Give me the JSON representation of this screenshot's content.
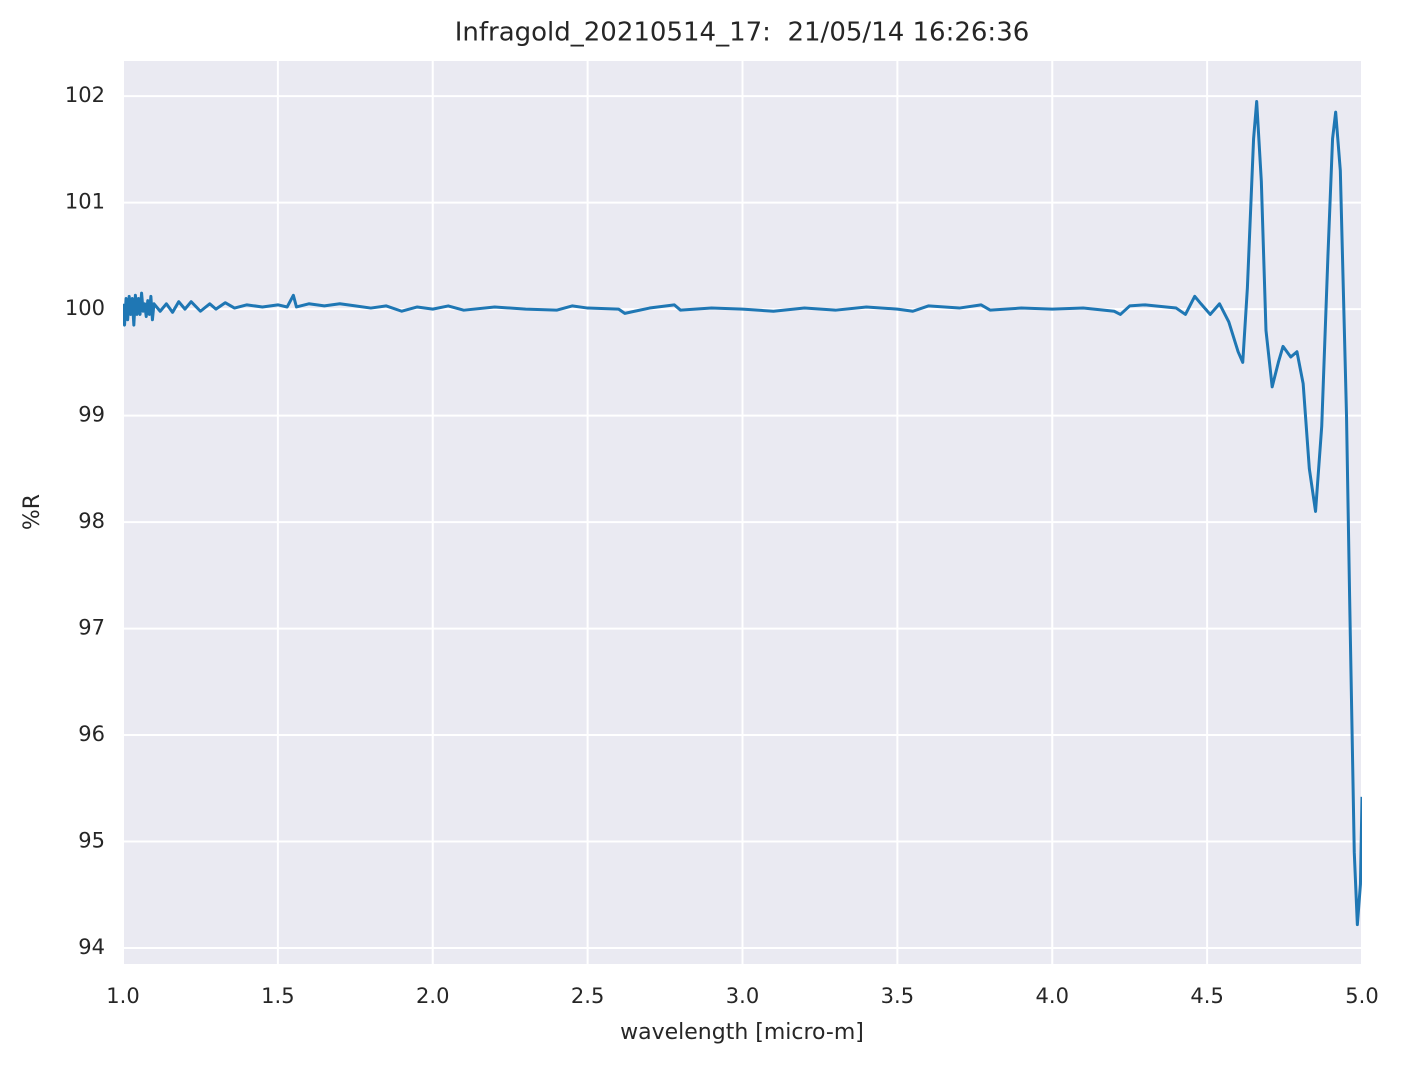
{
  "chart_data": {
    "type": "line",
    "title": "Infragold_20210514_17:  21/05/14 16:26:36",
    "x_label": "wavelength [micro-m]",
    "y_label": "%R",
    "color": "#1f77b4",
    "background": "#eaeaf2",
    "grid": true,
    "xlim": [
      1.0,
      5.0
    ],
    "ylim": [
      93.85,
      102.33
    ],
    "xticks": [
      {
        "value": 1,
        "label": "1.0"
      },
      {
        "value": 1.5,
        "label": "1.5"
      },
      {
        "value": 2,
        "label": "2.0"
      },
      {
        "value": 2.5,
        "label": "2.5"
      },
      {
        "value": 3,
        "label": "3.0"
      },
      {
        "value": 3.5,
        "label": "3.5"
      },
      {
        "value": 4,
        "label": "4.0"
      },
      {
        "value": 4.5,
        "label": "4.5"
      },
      {
        "value": 5,
        "label": "5.0"
      }
    ],
    "yticks": [
      94,
      95,
      96,
      97,
      98,
      99,
      100,
      101,
      102
    ],
    "x": [
      1.0,
      1.005,
      1.01,
      1.015,
      1.02,
      1.025,
      1.03,
      1.035,
      1.04,
      1.045,
      1.05,
      1.055,
      1.06,
      1.065,
      1.07,
      1.075,
      1.08,
      1.085,
      1.09,
      1.095,
      1.1,
      1.12,
      1.14,
      1.16,
      1.18,
      1.2,
      1.22,
      1.25,
      1.28,
      1.3,
      1.33,
      1.36,
      1.4,
      1.45,
      1.5,
      1.53,
      1.55,
      1.56,
      1.6,
      1.65,
      1.7,
      1.75,
      1.8,
      1.85,
      1.9,
      1.95,
      2.0,
      2.05,
      2.1,
      2.2,
      2.3,
      2.4,
      2.45,
      2.5,
      2.6,
      2.62,
      2.7,
      2.78,
      2.8,
      2.9,
      3.0,
      3.1,
      3.2,
      3.3,
      3.4,
      3.5,
      3.55,
      3.6,
      3.7,
      3.77,
      3.8,
      3.9,
      4.0,
      4.1,
      4.2,
      4.22,
      4.25,
      4.3,
      4.4,
      4.43,
      4.46,
      4.48,
      4.51,
      4.54,
      4.57,
      4.6,
      4.615,
      4.63,
      4.65,
      4.66,
      4.675,
      4.69,
      4.71,
      4.73,
      4.745,
      4.77,
      4.79,
      4.81,
      4.83,
      4.85,
      4.87,
      4.89,
      4.905,
      4.915,
      4.93,
      4.95,
      4.96,
      4.975,
      4.985,
      4.995,
      5.0
    ],
    "values": [
      100.05,
      99.85,
      100.1,
      99.9,
      100.12,
      99.95,
      100.1,
      99.85,
      100.13,
      99.95,
      100.1,
      99.95,
      100.15,
      99.98,
      100.05,
      99.93,
      100.08,
      99.95,
      100.12,
      99.9,
      100.05,
      99.98,
      100.05,
      99.97,
      100.07,
      100.0,
      100.07,
      99.98,
      100.05,
      100.0,
      100.06,
      100.01,
      100.04,
      100.02,
      100.04,
      100.02,
      100.13,
      100.02,
      100.05,
      100.03,
      100.05,
      100.03,
      100.01,
      100.03,
      99.98,
      100.02,
      100.0,
      100.03,
      99.99,
      100.02,
      100.0,
      99.99,
      100.03,
      100.01,
      100.0,
      99.96,
      100.01,
      100.04,
      99.99,
      100.01,
      100.0,
      99.98,
      100.01,
      99.99,
      100.02,
      100.0,
      99.98,
      100.03,
      100.01,
      100.04,
      99.99,
      100.01,
      100.0,
      100.01,
      99.98,
      99.95,
      100.03,
      100.04,
      100.01,
      99.95,
      100.12,
      100.05,
      99.95,
      100.05,
      99.88,
      99.6,
      99.5,
      100.2,
      101.6,
      101.95,
      101.2,
      99.8,
      99.27,
      99.5,
      99.65,
      99.55,
      99.6,
      99.3,
      98.5,
      98.1,
      98.9,
      100.5,
      101.6,
      101.85,
      101.3,
      99.0,
      97.3,
      94.9,
      94.22,
      94.6,
      95.42
    ]
  }
}
